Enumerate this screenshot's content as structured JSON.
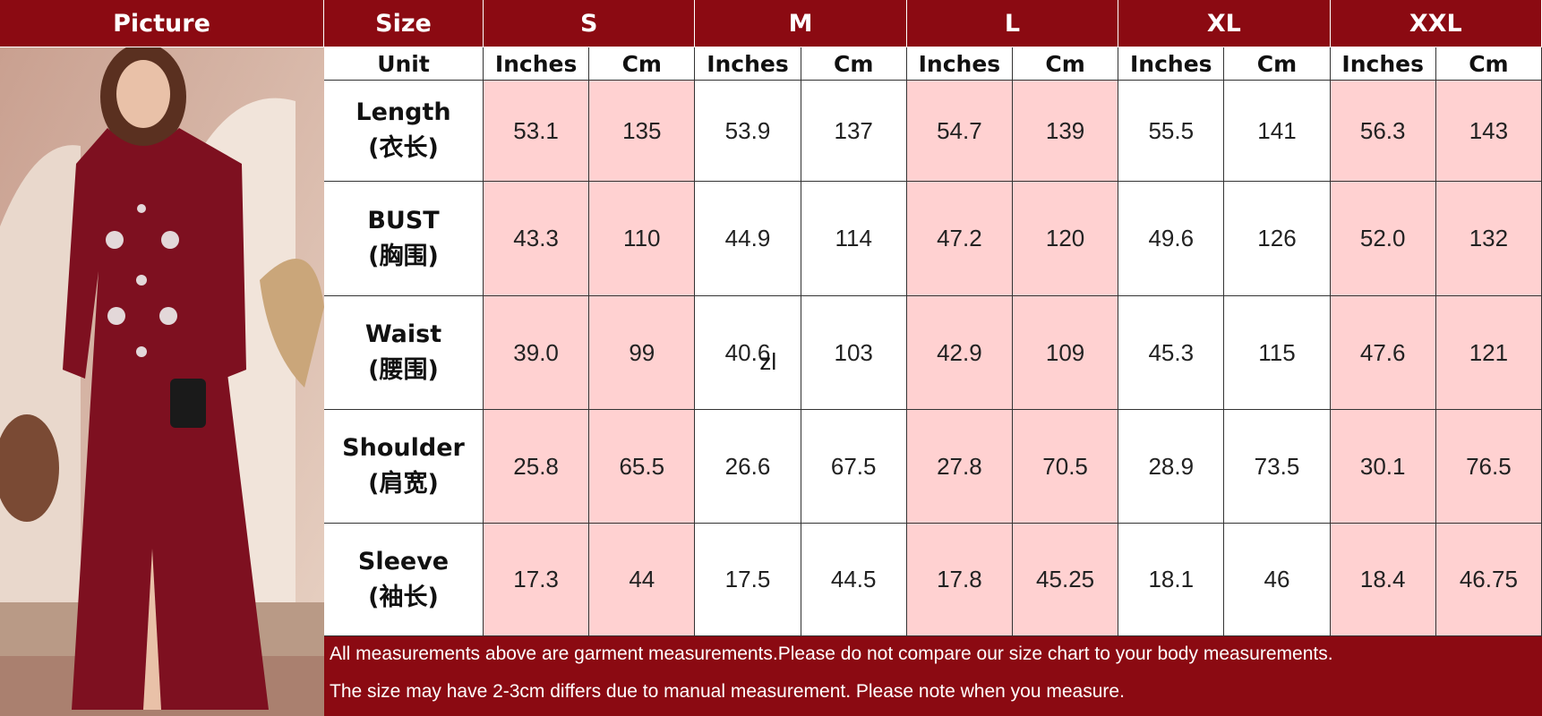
{
  "header": {
    "picture": "Picture",
    "size": "Size",
    "unit": "Unit"
  },
  "sizes": [
    {
      "name": "S",
      "units": [
        "Inches",
        "Cm"
      ]
    },
    {
      "name": "M",
      "units": [
        "Inches",
        "Cm"
      ]
    },
    {
      "name": "L",
      "units": [
        "Inches",
        "Cm"
      ]
    },
    {
      "name": "XL",
      "units": [
        "Inches",
        "Cm"
      ]
    },
    {
      "name": "XXL",
      "units": [
        "Inches",
        "Cm"
      ]
    }
  ],
  "rows": [
    {
      "label": "Length",
      "label_cn": "(衣长)",
      "values": [
        "53.1",
        "135",
        "53.9",
        "137",
        "54.7",
        "139",
        "55.5",
        "141",
        "56.3",
        "143"
      ]
    },
    {
      "label": "BUST",
      "label_cn": "(胸围)",
      "values": [
        "43.3",
        "110",
        "44.9",
        "114",
        "47.2",
        "120",
        "49.6",
        "126",
        "52.0",
        "132"
      ]
    },
    {
      "label": "Waist",
      "label_cn": "(腰围)",
      "values": [
        "39.0",
        "99",
        "40.6",
        "103",
        "42.9",
        "109",
        "45.3",
        "115",
        "47.6",
        "121"
      ]
    },
    {
      "label": "Shoulder",
      "label_cn": "(肩宽)",
      "values": [
        "25.8",
        "65.5",
        "26.6",
        "67.5",
        "27.8",
        "70.5",
        "28.9",
        "73.5",
        "30.1",
        "76.5"
      ]
    },
    {
      "label": "Sleeve",
      "label_cn": "(袖长)",
      "values": [
        "17.3",
        "44",
        "17.5",
        "44.5",
        "17.8",
        "45.25",
        "18.1",
        "46",
        "18.4",
        "46.75"
      ]
    }
  ],
  "stray_mark": "zl",
  "notes": [
    "All measurements above are garment measurements.Please do not compare our size chart to your body measurements.",
    "The size may have 2-3cm differs due to manual measurement. Please note when you measure."
  ]
}
